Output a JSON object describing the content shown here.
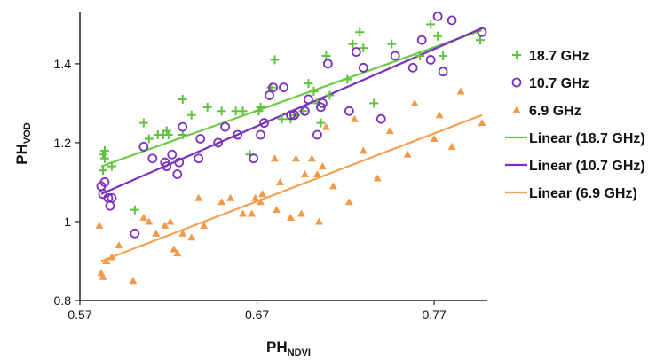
{
  "chart_data": {
    "type": "scatter",
    "xlabel": {
      "main": "PH",
      "sub": "NDVI"
    },
    "ylabel": {
      "main": "PH",
      "sub": "VOD"
    },
    "xlim": [
      0.57,
      0.8
    ],
    "ylim": [
      0.8,
      1.53
    ],
    "xticks": [
      0.57,
      0.67,
      0.77
    ],
    "xtick_labels": [
      "0.57",
      "0.67",
      "0.77"
    ],
    "yticks": [
      0.8,
      1.0,
      1.2,
      1.4
    ],
    "ytick_labels": [
      "0.8",
      "1",
      "1.2",
      "1.4"
    ],
    "grid": false,
    "legend_position": "right",
    "series": [
      {
        "name": "18.7 GHz",
        "marker": "plus",
        "color": "#5ec43c",
        "points": [
          [
            0.584,
            1.18
          ],
          [
            0.583,
            1.17
          ],
          [
            0.584,
            1.16
          ],
          [
            0.583,
            1.13
          ],
          [
            0.588,
            1.14
          ],
          [
            0.601,
            1.03
          ],
          [
            0.606,
            1.25
          ],
          [
            0.609,
            1.21
          ],
          [
            0.614,
            1.22
          ],
          [
            0.617,
            1.22
          ],
          [
            0.619,
            1.23
          ],
          [
            0.62,
            1.22
          ],
          [
            0.628,
            1.31
          ],
          [
            0.628,
            1.22
          ],
          [
            0.633,
            1.27
          ],
          [
            0.642,
            1.29
          ],
          [
            0.65,
            1.28
          ],
          [
            0.658,
            1.28
          ],
          [
            0.662,
            1.28
          ],
          [
            0.666,
            1.17
          ],
          [
            0.671,
            1.28
          ],
          [
            0.672,
            1.29
          ],
          [
            0.678,
            1.34
          ],
          [
            0.68,
            1.41
          ],
          [
            0.684,
            1.26
          ],
          [
            0.689,
            1.26
          ],
          [
            0.692,
            1.27
          ],
          [
            0.696,
            1.28
          ],
          [
            0.699,
            1.35
          ],
          [
            0.702,
            1.33
          ],
          [
            0.704,
            1.3
          ],
          [
            0.706,
            1.25
          ],
          [
            0.709,
            1.42
          ],
          [
            0.711,
            1.32
          ],
          [
            0.721,
            1.36
          ],
          [
            0.724,
            1.45
          ],
          [
            0.728,
            1.48
          ],
          [
            0.73,
            1.44
          ],
          [
            0.736,
            1.3
          ],
          [
            0.746,
            1.45
          ],
          [
            0.762,
            1.42
          ],
          [
            0.768,
            1.5
          ],
          [
            0.772,
            1.47
          ],
          [
            0.775,
            1.42
          ],
          [
            0.796,
            1.46
          ]
        ]
      },
      {
        "name": "10.7 GHz",
        "marker": "circle",
        "color": "#7b2fbf",
        "points": [
          [
            0.582,
            1.09
          ],
          [
            0.584,
            1.1
          ],
          [
            0.583,
            1.07
          ],
          [
            0.586,
            1.06
          ],
          [
            0.588,
            1.06
          ],
          [
            0.587,
            1.04
          ],
          [
            0.601,
            0.97
          ],
          [
            0.606,
            1.19
          ],
          [
            0.611,
            1.16
          ],
          [
            0.618,
            1.15
          ],
          [
            0.619,
            1.14
          ],
          [
            0.622,
            1.17
          ],
          [
            0.625,
            1.12
          ],
          [
            0.626,
            1.15
          ],
          [
            0.628,
            1.24
          ],
          [
            0.637,
            1.16
          ],
          [
            0.638,
            1.21
          ],
          [
            0.648,
            1.2
          ],
          [
            0.652,
            1.24
          ],
          [
            0.659,
            1.22
          ],
          [
            0.668,
            1.16
          ],
          [
            0.672,
            1.22
          ],
          [
            0.674,
            1.25
          ],
          [
            0.677,
            1.32
          ],
          [
            0.679,
            1.34
          ],
          [
            0.685,
            1.34
          ],
          [
            0.689,
            1.27
          ],
          [
            0.691,
            1.27
          ],
          [
            0.697,
            1.28
          ],
          [
            0.699,
            1.31
          ],
          [
            0.704,
            1.22
          ],
          [
            0.706,
            1.29
          ],
          [
            0.707,
            1.3
          ],
          [
            0.71,
            1.4
          ],
          [
            0.722,
            1.28
          ],
          [
            0.726,
            1.43
          ],
          [
            0.73,
            1.39
          ],
          [
            0.74,
            1.26
          ],
          [
            0.748,
            1.42
          ],
          [
            0.758,
            1.39
          ],
          [
            0.763,
            1.46
          ],
          [
            0.768,
            1.41
          ],
          [
            0.772,
            1.52
          ],
          [
            0.775,
            1.38
          ],
          [
            0.78,
            1.51
          ],
          [
            0.797,
            1.48
          ]
        ]
      },
      {
        "name": "6.9 GHz",
        "marker": "triangle",
        "color": "#f39a49",
        "points": [
          [
            0.581,
            0.99
          ],
          [
            0.582,
            0.87
          ],
          [
            0.583,
            0.86
          ],
          [
            0.585,
            0.9
          ],
          [
            0.588,
            0.91
          ],
          [
            0.592,
            0.94
          ],
          [
            0.6,
            0.85
          ],
          [
            0.606,
            1.01
          ],
          [
            0.609,
            1.0
          ],
          [
            0.613,
            0.97
          ],
          [
            0.618,
            0.99
          ],
          [
            0.621,
            1.0
          ],
          [
            0.623,
            0.93
          ],
          [
            0.625,
            0.92
          ],
          [
            0.628,
            0.97
          ],
          [
            0.633,
            0.96
          ],
          [
            0.637,
            1.06
          ],
          [
            0.64,
            0.99
          ],
          [
            0.65,
            1.05
          ],
          [
            0.655,
            1.06
          ],
          [
            0.662,
            1.02
          ],
          [
            0.667,
            1.02
          ],
          [
            0.669,
            1.06
          ],
          [
            0.672,
            1.05
          ],
          [
            0.673,
            1.07
          ],
          [
            0.68,
            1.16
          ],
          [
            0.681,
            1.03
          ],
          [
            0.683,
            1.1
          ],
          [
            0.689,
            1.01
          ],
          [
            0.692,
            1.16
          ],
          [
            0.695,
            1.02
          ],
          [
            0.697,
            1.12
          ],
          [
            0.701,
            1.16
          ],
          [
            0.704,
            1.12
          ],
          [
            0.705,
            1.0
          ],
          [
            0.707,
            1.14
          ],
          [
            0.709,
            1.24
          ],
          [
            0.713,
            1.09
          ],
          [
            0.722,
            1.05
          ],
          [
            0.725,
            1.26
          ],
          [
            0.73,
            1.18
          ],
          [
            0.738,
            1.11
          ],
          [
            0.745,
            1.23
          ],
          [
            0.755,
            1.17
          ],
          [
            0.759,
            1.3
          ],
          [
            0.77,
            1.21
          ],
          [
            0.773,
            1.27
          ],
          [
            0.78,
            1.19
          ],
          [
            0.785,
            1.33
          ],
          [
            0.797,
            1.25
          ]
        ]
      }
    ],
    "trendlines": [
      {
        "name": "Linear (18.7 GHz)",
        "color": "#6dcc45",
        "x": [
          0.582,
          0.797
        ],
        "y": [
          1.14,
          1.485
        ]
      },
      {
        "name": "Linear (10.7 GHz)",
        "color": "#7b2fbf",
        "x": [
          0.582,
          0.797
        ],
        "y": [
          1.07,
          1.49
        ]
      },
      {
        "name": "Linear (6.9 GHz)",
        "color": "#f5a153",
        "x": [
          0.582,
          0.797
        ],
        "y": [
          0.9,
          1.27
        ]
      }
    ],
    "legend": [
      {
        "label": "18.7 GHz",
        "kind": "marker",
        "marker": "plus",
        "color": "#5ec43c"
      },
      {
        "label": "10.7 GHz",
        "kind": "marker",
        "marker": "circle",
        "color": "#7b2fbf"
      },
      {
        "label": "6.9 GHz",
        "kind": "marker",
        "marker": "triangle",
        "color": "#f39a49"
      },
      {
        "label": "Linear (18.7 GHz)",
        "kind": "line",
        "color": "#6dcc45"
      },
      {
        "label": "Linear (10.7 GHz)",
        "kind": "line",
        "color": "#7b2fbf"
      },
      {
        "label": "Linear (6.9 GHz)",
        "kind": "line",
        "color": "#f5a153"
      }
    ]
  }
}
